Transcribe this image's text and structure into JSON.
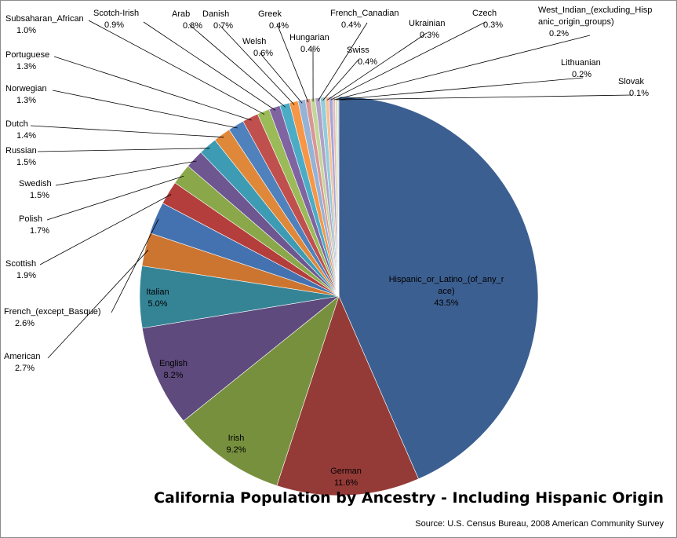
{
  "chart_data": {
    "type": "pie",
    "title": "California Population by Ancestry - Including Hispanic Origin",
    "source": "Source: U.S. Census Bureau, 2008 American Community Survey",
    "start_angle_deg": 0,
    "direction": "clockwise",
    "slices": [
      {
        "name": "Hispanic_or_Latino_(of_any_race)",
        "label_lines": [
          "Hispanic_or_Latino_(of_any_r",
          "ace)"
        ],
        "value": 43.5,
        "pct_label": "43.5%",
        "color": "#3c5f91"
      },
      {
        "name": "German",
        "value": 11.6,
        "pct_label": "11.6%",
        "color": "#943b38"
      },
      {
        "name": "Irish",
        "value": 9.2,
        "pct_label": "9.2%",
        "color": "#77903e"
      },
      {
        "name": "English",
        "value": 8.2,
        "pct_label": "8.2%",
        "color": "#5e4a7c"
      },
      {
        "name": "Italian",
        "value": 5.0,
        "pct_label": "5.0%",
        "color": "#358496"
      },
      {
        "name": "American",
        "value": 2.7,
        "pct_label": "2.7%",
        "color": "#cc7530"
      },
      {
        "name": "French_(except_Basque)",
        "value": 2.6,
        "pct_label": "2.6%",
        "color": "#4472b0"
      },
      {
        "name": "Scottish",
        "value": 1.9,
        "pct_label": "1.9%",
        "color": "#b33e3b"
      },
      {
        "name": "Polish",
        "value": 1.7,
        "pct_label": "1.7%",
        "color": "#8aa84a"
      },
      {
        "name": "Swedish",
        "value": 1.5,
        "pct_label": "1.5%",
        "color": "#6e5690"
      },
      {
        "name": "Russian",
        "value": 1.5,
        "pct_label": "1.5%",
        "color": "#3d9cb3"
      },
      {
        "name": "Dutch",
        "value": 1.4,
        "pct_label": "1.4%",
        "color": "#e0883a"
      },
      {
        "name": "Norwegian",
        "value": 1.3,
        "pct_label": "1.3%",
        "color": "#4f81bd"
      },
      {
        "name": "Portuguese",
        "value": 1.3,
        "pct_label": "1.3%",
        "color": "#c0504d"
      },
      {
        "name": "Subsaharan_African",
        "value": 1.0,
        "pct_label": "1.0%",
        "color": "#9bbb59"
      },
      {
        "name": "Scotch-Irish",
        "value": 0.9,
        "pct_label": "0.9%",
        "color": "#8064a2"
      },
      {
        "name": "Arab",
        "value": 0.8,
        "pct_label": "0.8%",
        "color": "#4bacc6"
      },
      {
        "name": "Danish",
        "value": 0.7,
        "pct_label": "0.7%",
        "color": "#f79646"
      },
      {
        "name": "Welsh",
        "value": 0.6,
        "pct_label": "0.6%",
        "color": "#95b3d7"
      },
      {
        "name": "Greek",
        "value": 0.4,
        "pct_label": "0.4%",
        "color": "#da9694"
      },
      {
        "name": "Hungarian",
        "value": 0.4,
        "pct_label": "0.4%",
        "color": "#c4d79b"
      },
      {
        "name": "French_Canadian",
        "value": 0.4,
        "pct_label": "0.4%",
        "color": "#b1a0c7"
      },
      {
        "name": "Swiss",
        "value": 0.4,
        "pct_label": "0.4%",
        "color": "#92cddc"
      },
      {
        "name": "Ukrainian",
        "value": 0.3,
        "pct_label": "0.3%",
        "color": "#fabf8f"
      },
      {
        "name": "Czech",
        "value": 0.3,
        "pct_label": "0.3%",
        "color": "#a6a6d9"
      },
      {
        "name": "West_Indian_(excluding_Hispanic_origin_groups)",
        "label_lines": [
          "West_Indian_(excluding_Hisp",
          "anic_origin_groups)"
        ],
        "value": 0.2,
        "pct_label": "0.2%",
        "color": "#e6b9b8"
      },
      {
        "name": "Lithuanian",
        "value": 0.2,
        "pct_label": "0.2%",
        "color": "#d7e4bc"
      },
      {
        "name": "Slovak",
        "value": 0.1,
        "pct_label": "0.1%",
        "color": "#ccc0da"
      }
    ]
  }
}
